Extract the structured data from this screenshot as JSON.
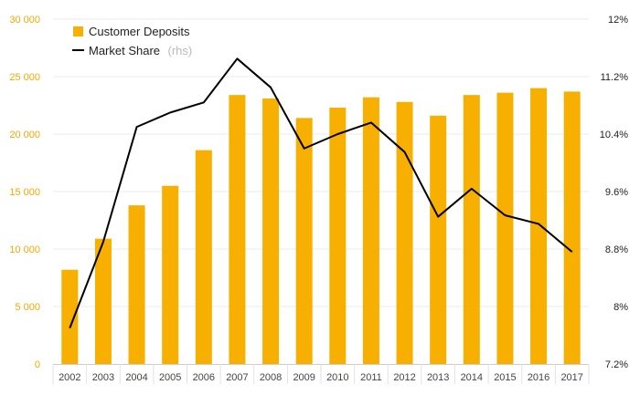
{
  "chart_data": {
    "type": "bar",
    "categories": [
      "2002",
      "2003",
      "2004",
      "2005",
      "2006",
      "2007",
      "2008",
      "2009",
      "2010",
      "2011",
      "2012",
      "2013",
      "2014",
      "2015",
      "2016",
      "2017"
    ],
    "series": [
      {
        "name": "Customer Deposits",
        "type": "bar",
        "axis": "left",
        "color": "#f7b000",
        "values": [
          8200,
          10900,
          13800,
          15500,
          18600,
          23400,
          23100,
          21400,
          22300,
          23200,
          22800,
          21600,
          23400,
          23600,
          24000,
          23700
        ]
      },
      {
        "name": "Market Share",
        "name_suffix": "(rhs)",
        "type": "line",
        "axis": "right",
        "color": "#000000",
        "values": [
          7.7,
          8.9,
          10.5,
          10.7,
          10.84,
          11.45,
          11.05,
          10.2,
          10.4,
          10.56,
          10.15,
          9.25,
          9.64,
          9.27,
          9.15,
          8.76
        ]
      }
    ],
    "y_left": {
      "ylim": [
        0,
        30000
      ],
      "ticks": [
        0,
        5000,
        10000,
        15000,
        20000,
        25000,
        30000
      ],
      "tick_labels": [
        "0",
        "5 000",
        "10 000",
        "15 000",
        "20 000",
        "25 000",
        "30 000"
      ],
      "color": "#f5a800"
    },
    "y_right": {
      "ylim": [
        7.2,
        12
      ],
      "ticks": [
        7.2,
        8,
        8.8,
        9.6,
        10.4,
        11.2,
        12
      ],
      "tick_labels": [
        "7.2%",
        "8%",
        "8.8%",
        "9.6%",
        "10.4%",
        "11.2%",
        "12%"
      ]
    },
    "grid": true,
    "legend_position": "top-left",
    "title": "",
    "xlabel": "",
    "ylabel": ""
  }
}
